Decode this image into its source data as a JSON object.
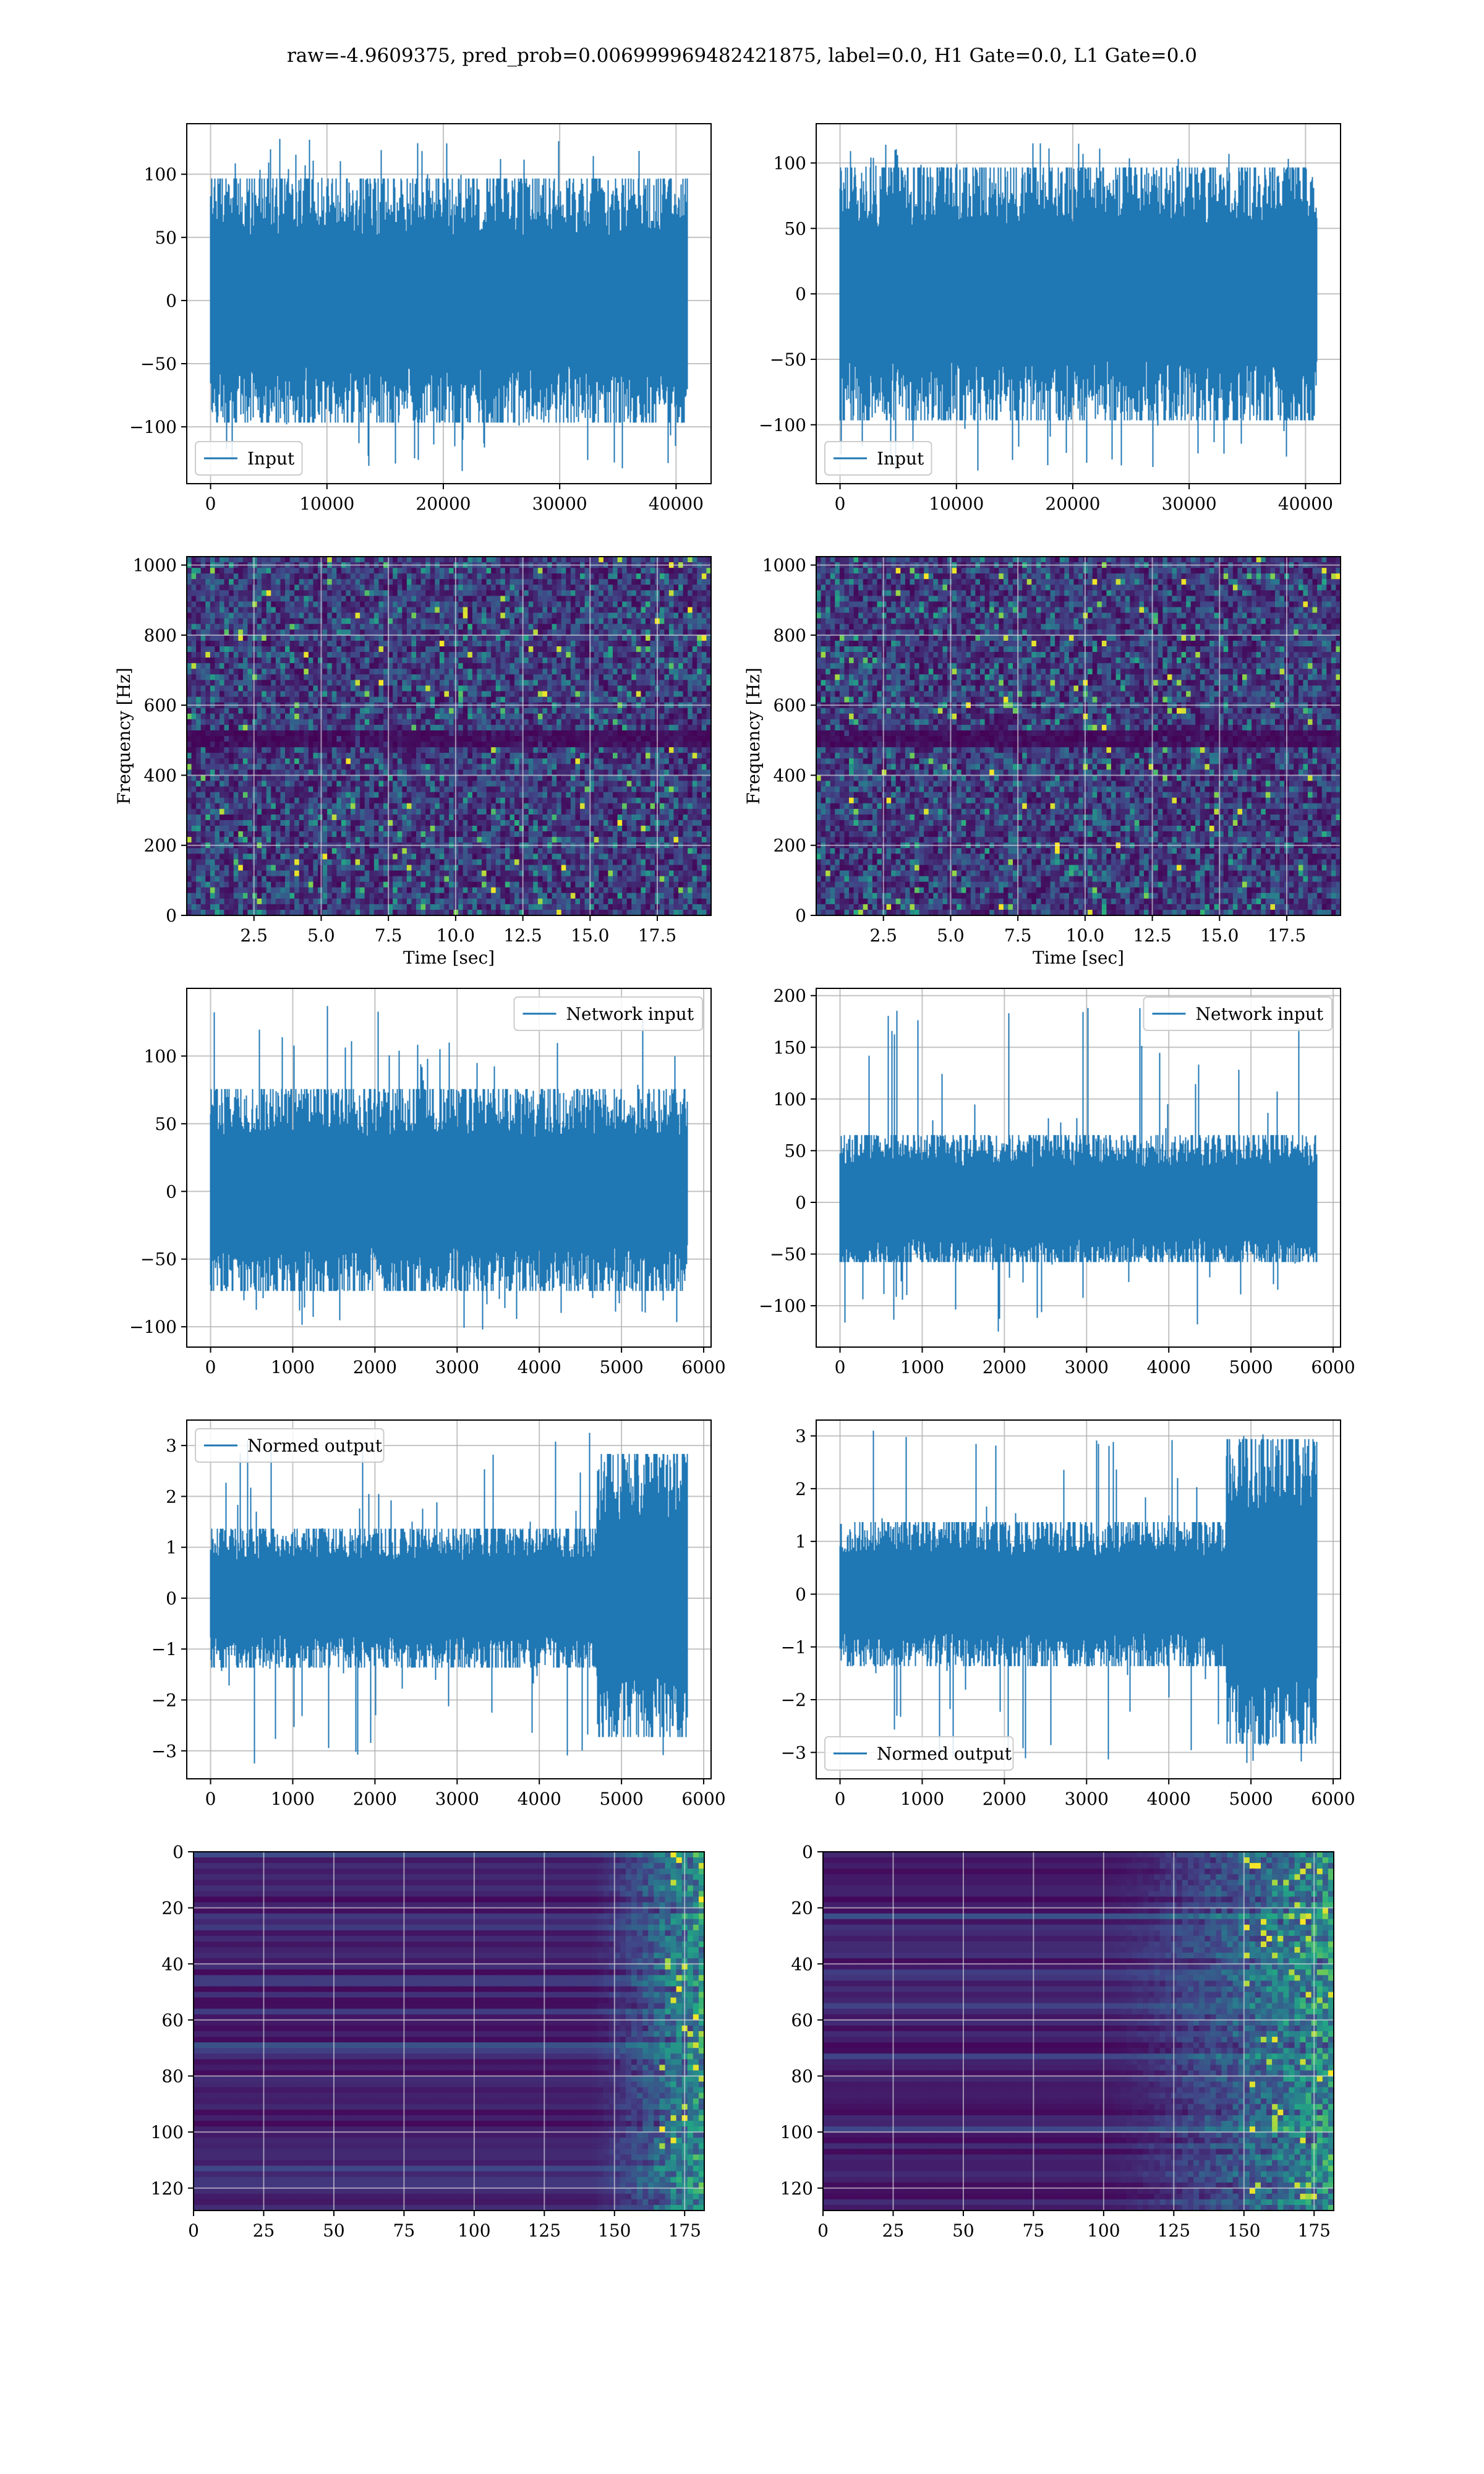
{
  "figure": {
    "suptitle": "raw=-4.9609375, pred_prob=0.006999969482421875, label=0.0, H1 Gate=0.0, L1 Gate=0.0"
  },
  "colors": {
    "line": "#1f77b4",
    "grid": "#b0b0b0",
    "viridis_dark": "#440154",
    "viridis_mid": "#21918c",
    "viridis_bright": "#fde725"
  },
  "chart_data": [
    {
      "id": "input-h1",
      "type": "line",
      "xlim": [
        -2048,
        43008
      ],
      "ylim": [
        -145,
        140
      ],
      "xticks": [
        0,
        10000,
        20000,
        30000,
        40000
      ],
      "yticks": [
        -100,
        -50,
        0,
        50,
        100
      ],
      "series": [
        {
          "name": "Input",
          "x_range": [
            0,
            40959
          ],
          "envelope": [
            -92,
            92
          ],
          "peak_max": 128,
          "peak_min": -135
        }
      ],
      "legend": "lower-left",
      "grid": true
    },
    {
      "id": "input-l1",
      "type": "line",
      "xlim": [
        -2048,
        43008
      ],
      "ylim": [
        -145,
        130
      ],
      "xticks": [
        0,
        10000,
        20000,
        30000,
        40000
      ],
      "yticks": [
        -100,
        -50,
        0,
        50,
        100
      ],
      "series": [
        {
          "name": "Input",
          "x_range": [
            0,
            40959
          ],
          "envelope": [
            -92,
            92
          ],
          "peak_max": 115,
          "peak_min": -135
        }
      ],
      "legend": "lower-left",
      "grid": true
    },
    {
      "id": "spec-h1",
      "type": "heatmap",
      "xlim": [
        0,
        19.5
      ],
      "ylim": [
        0,
        1024
      ],
      "xticks": [
        2.5,
        5.0,
        7.5,
        10.0,
        12.5,
        15.0,
        17.5
      ],
      "yticks": [
        0,
        200,
        400,
        600,
        800,
        1000
      ],
      "xlabel": "Time [sec]",
      "ylabel": "Frequency [Hz]",
      "colormap": "viridis",
      "dark_band_hz": 505,
      "grid": true
    },
    {
      "id": "spec-l1",
      "type": "heatmap",
      "xlim": [
        0,
        19.5
      ],
      "ylim": [
        0,
        1024
      ],
      "xticks": [
        2.5,
        5.0,
        7.5,
        10.0,
        12.5,
        15.0,
        17.5
      ],
      "yticks": [
        0,
        200,
        400,
        600,
        800,
        1000
      ],
      "xlabel": "Time [sec]",
      "ylabel": "Frequency [Hz]",
      "colormap": "viridis",
      "dark_band_hz": 505,
      "grid": true
    },
    {
      "id": "netin-h1",
      "type": "line",
      "xlim": [
        -290,
        6090
      ],
      "ylim": [
        -115,
        150
      ],
      "xticks": [
        0,
        1000,
        2000,
        3000,
        4000,
        5000,
        6000
      ],
      "yticks": [
        -100,
        -50,
        0,
        50,
        100
      ],
      "series": [
        {
          "name": "Network input",
          "x_range": [
            0,
            5800
          ],
          "envelope": [
            -70,
            72
          ],
          "peak_max": 137,
          "peak_min": -102
        }
      ],
      "legend": "upper-right",
      "grid": true
    },
    {
      "id": "netin-l1",
      "type": "line",
      "xlim": [
        -290,
        6090
      ],
      "ylim": [
        -140,
        207
      ],
      "xticks": [
        0,
        1000,
        2000,
        3000,
        4000,
        5000,
        6000
      ],
      "yticks": [
        -100,
        -50,
        0,
        50,
        100,
        150,
        200
      ],
      "series": [
        {
          "name": "Network input",
          "x_range": [
            0,
            5800
          ],
          "envelope": [
            -55,
            62
          ],
          "peak_max": 188,
          "peak_min": -125
        }
      ],
      "legend": "upper-right",
      "grid": true
    },
    {
      "id": "normed-h1",
      "type": "line",
      "xlim": [
        -290,
        6090
      ],
      "ylim": [
        -3.55,
        3.5
      ],
      "xticks": [
        0,
        1000,
        2000,
        3000,
        4000,
        5000,
        6000
      ],
      "yticks": [
        -3,
        -2,
        -1,
        0,
        1,
        2,
        3
      ],
      "series": [
        {
          "name": "Normed output",
          "x_range": [
            0,
            5800
          ],
          "segments": [
            {
              "x": [
                0,
                4700
              ],
              "envelope": [
                -1.3,
                1.3
              ]
            },
            {
              "x": [
                4700,
                5800
              ],
              "envelope": [
                -2.6,
                2.7
              ]
            }
          ],
          "peak_max": 3.25,
          "peak_min": -3.25
        }
      ],
      "legend": "upper-left",
      "grid": true
    },
    {
      "id": "normed-l1",
      "type": "line",
      "xlim": [
        -290,
        6090
      ],
      "ylim": [
        -3.5,
        3.3
      ],
      "xticks": [
        0,
        1000,
        2000,
        3000,
        4000,
        5000,
        6000
      ],
      "yticks": [
        -3,
        -2,
        -1,
        0,
        1,
        2,
        3
      ],
      "series": [
        {
          "name": "Normed output",
          "x_range": [
            0,
            5800
          ],
          "segments": [
            {
              "x": [
                0,
                4700
              ],
              "envelope": [
                -1.3,
                1.3
              ]
            },
            {
              "x": [
                4700,
                5800
              ],
              "envelope": [
                -2.7,
                2.8
              ]
            }
          ],
          "peak_max": 3.1,
          "peak_min": -3.2
        }
      ],
      "legend": "lower-left",
      "grid": true
    },
    {
      "id": "feat-h1",
      "type": "heatmap",
      "xlim": [
        0,
        182
      ],
      "ylim": [
        128,
        0
      ],
      "xticks": [
        0,
        25,
        50,
        75,
        100,
        125,
        150,
        175
      ],
      "yticks": [
        0,
        20,
        40,
        60,
        80,
        100,
        120
      ],
      "colormap": "viridis",
      "bright_region_x": [
        140,
        182
      ],
      "grid": true
    },
    {
      "id": "feat-l1",
      "type": "heatmap",
      "xlim": [
        0,
        182
      ],
      "ylim": [
        128,
        0
      ],
      "xticks": [
        0,
        25,
        50,
        75,
        100,
        125,
        150,
        175
      ],
      "yticks": [
        0,
        20,
        40,
        60,
        80,
        100,
        120
      ],
      "colormap": "viridis",
      "bright_region_x": [
        100,
        182
      ],
      "grid": true
    }
  ]
}
